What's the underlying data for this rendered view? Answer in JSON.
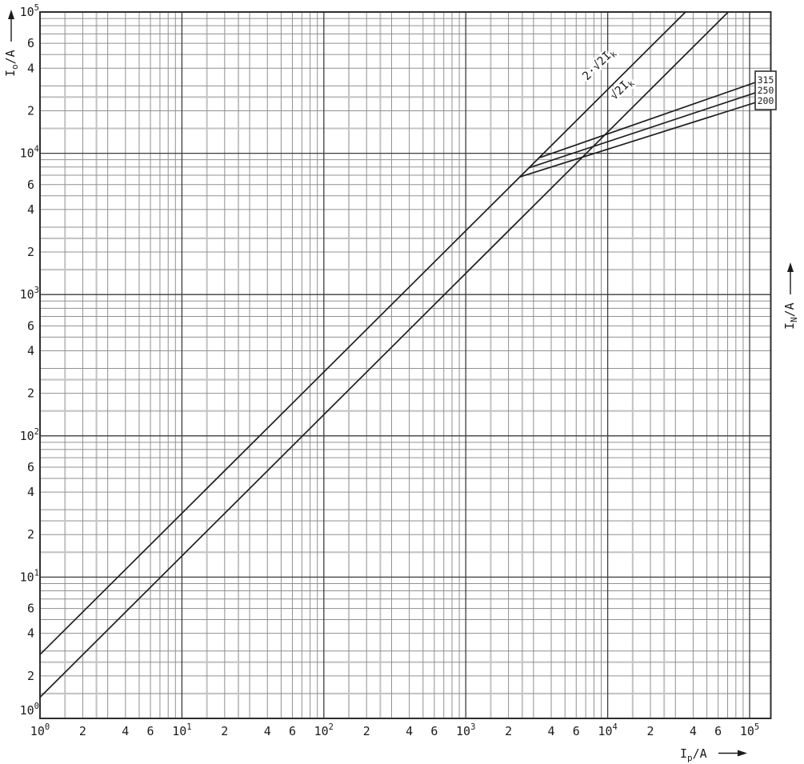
{
  "chart_data": {
    "type": "line",
    "title": "",
    "x_axis": {
      "label": {
        "base": "I",
        "sub": "p",
        "suffix": "/A"
      },
      "scale": "log",
      "min": 1,
      "max": 141000,
      "decade_label_base": "10",
      "decade_exponents": [
        0,
        1,
        2,
        3,
        4,
        5
      ],
      "labeled_subdivisions": [
        2,
        4,
        6
      ],
      "minor_gridlines": [
        2,
        3,
        4,
        5,
        6,
        7,
        8,
        9
      ],
      "faint_gridlines": [
        1.5,
        2.5
      ]
    },
    "y_axis": {
      "label": {
        "base": "I",
        "sub": "o",
        "suffix": "/A"
      },
      "scale": "log",
      "min": 1,
      "max": 100000,
      "decade_label_base": "10",
      "decade_exponents": [
        0,
        1,
        2,
        3,
        4,
        5
      ],
      "labeled_subdivisions": [
        2,
        4,
        6
      ],
      "minor_gridlines": [
        2,
        3,
        4,
        5,
        6,
        7,
        8,
        9
      ],
      "faint_gridlines": [
        1.5,
        2.5
      ]
    },
    "y_axis_right": {
      "label": {
        "base": "I",
        "sub": "N",
        "suffix": "/A"
      }
    },
    "grid": "log-log, major decade lines dark, minor subdivision lines gray",
    "legend_position": "none",
    "series": [
      {
        "id": "line-2sqrt2-ik",
        "name": "2·√2·Ik peak current reference line",
        "points": [
          [
            1,
            2.83
          ],
          [
            35355,
            100000
          ]
        ]
      },
      {
        "id": "line-sqrt2-ik",
        "name": "√2·Ik peak current reference line",
        "points": [
          [
            1,
            1.41
          ],
          [
            70711,
            100000
          ]
        ]
      },
      {
        "id": "curve-315",
        "name": "315 A fuse cut-off current characteristic",
        "rating": "315",
        "points": [
          [
            3300,
            9300
          ],
          [
            112000,
            32000
          ]
        ]
      },
      {
        "id": "curve-250",
        "name": "250 A fuse cut-off current characteristic",
        "rating": "250",
        "points": [
          [
            2800,
            7900
          ],
          [
            112000,
            27000
          ]
        ]
      },
      {
        "id": "curve-200",
        "name": "200 A fuse cut-off current characteristic",
        "rating": "200",
        "points": [
          [
            2400,
            6800
          ],
          [
            112000,
            23000
          ]
        ]
      }
    ],
    "line_annotations": [
      {
        "id": "label-2sqrt2-ik",
        "pre": "2·√2",
        "base": "I",
        "sub": "k",
        "anchor_x": 9000,
        "anchor_y": 41000,
        "rotate": -45
      },
      {
        "id": "label-sqrt2-ik",
        "pre": "√2",
        "base": "I",
        "sub": "k",
        "anchor_x": 13000,
        "anchor_y": 27500,
        "rotate": -45
      }
    ],
    "rating_box": {
      "values": [
        "315",
        "250",
        "200"
      ]
    },
    "colors": {
      "curve": "#1f1f1f",
      "grid_major": "#3c3c3c",
      "grid_minor": "#909090",
      "grid_faint": "#c4c4c4",
      "frame": "#2e2e2e",
      "text": "#1c1c1c",
      "background": "#ffffff"
    }
  }
}
